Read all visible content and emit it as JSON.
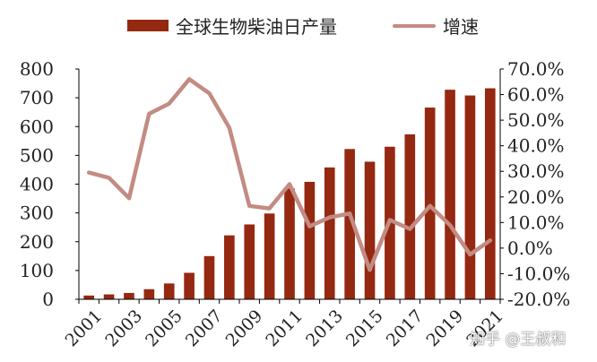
{
  "legend": {
    "bar_label": "全球生物柴油日产量",
    "line_label": "增速"
  },
  "watermark": "知乎 @王叔和",
  "colors": {
    "bar": "#952811",
    "line": "#C38B83",
    "axis": "#000000",
    "text": "#222222"
  },
  "chart_data": {
    "type": "bar",
    "x": [
      2001,
      2002,
      2003,
      2004,
      2005,
      2006,
      2007,
      2008,
      2009,
      2010,
      2011,
      2012,
      2013,
      2014,
      2015,
      2016,
      2017,
      2018,
      2019,
      2020,
      2021
    ],
    "x_tick_labels": [
      "2001",
      "2003",
      "2005",
      "2007",
      "2009",
      "2011",
      "2013",
      "2015",
      "2017",
      "2019",
      "2021"
    ],
    "series": [
      {
        "name": "全球生物柴油日产量",
        "type": "bar",
        "axis": "left",
        "values": [
          13,
          17,
          22,
          35,
          55,
          92,
          150,
          222,
          260,
          298,
          385,
          408,
          458,
          522,
          478,
          530,
          573,
          666,
          728,
          708,
          733
        ]
      },
      {
        "name": "增速",
        "type": "line",
        "axis": "right",
        "values": [
          29.5,
          27.5,
          19.5,
          52.5,
          56.5,
          66.0,
          60.5,
          47.0,
          16.5,
          15.5,
          25.0,
          8.5,
          12.0,
          13.5,
          -8.5,
          11.0,
          7.5,
          16.5,
          9.0,
          -2.5,
          3.0
        ]
      }
    ],
    "y_left": {
      "ylim": [
        0,
        800
      ],
      "ticks": [
        "0",
        "100",
        "200",
        "300",
        "400",
        "500",
        "600",
        "700",
        "800"
      ]
    },
    "y_right": {
      "ylim": [
        -20,
        70
      ],
      "ticks": [
        "-20.0%",
        "-10.0%",
        "0.0%",
        "10.0%",
        "20.0%",
        "30.0%",
        "40.0%",
        "50.0%",
        "60.0%",
        "70.0%"
      ]
    },
    "title": "",
    "xlabel": "",
    "ylabel": "",
    "grid": false,
    "legend_position": "top"
  }
}
